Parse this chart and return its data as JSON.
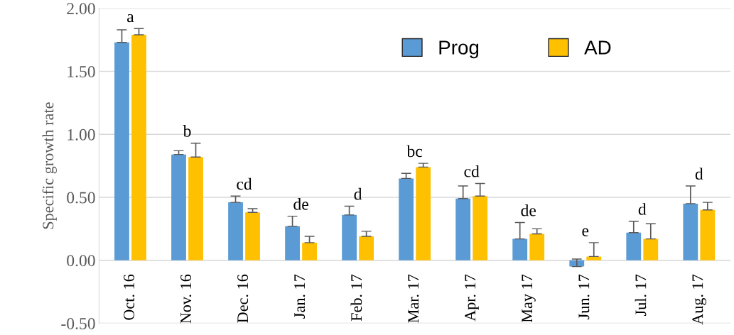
{
  "chart_data": {
    "type": "bar",
    "ylabel": "Specific growth rate",
    "categories": [
      "Oct. 16",
      "Nov. 16",
      "Dec. 16",
      "Jan. 17",
      "Feb. 17",
      "Mar. 17",
      "Apr. 17",
      "May 17",
      "Jun. 17",
      "Jul. 17",
      "Aug. 17"
    ],
    "series": [
      {
        "name": "Prog",
        "color": "#5b9bd5",
        "values": [
          1.73,
          0.84,
          0.46,
          0.27,
          0.36,
          0.65,
          0.49,
          0.17,
          -0.05,
          0.22,
          0.45
        ],
        "errors": [
          [
            1.73,
            1.83
          ],
          [
            0.84,
            0.87
          ],
          [
            0.46,
            0.51
          ],
          [
            0.27,
            0.35
          ],
          [
            0.36,
            0.43
          ],
          [
            0.65,
            0.69
          ],
          [
            0.49,
            0.59
          ],
          [
            0.17,
            0.3
          ],
          [
            -0.05,
            0.01
          ],
          [
            0.22,
            0.31
          ],
          [
            0.45,
            0.59
          ]
        ]
      },
      {
        "name": "AD",
        "color": "#ffc000",
        "values": [
          1.79,
          0.82,
          0.38,
          0.14,
          0.19,
          0.74,
          0.51,
          0.21,
          0.03,
          0.17,
          0.4
        ],
        "errors": [
          [
            1.79,
            1.84
          ],
          [
            0.82,
            0.93
          ],
          [
            0.38,
            0.41
          ],
          [
            0.14,
            0.19
          ],
          [
            0.19,
            0.23
          ],
          [
            0.74,
            0.77
          ],
          [
            0.51,
            0.61
          ],
          [
            0.21,
            0.25
          ],
          [
            0.03,
            0.14
          ],
          [
            0.17,
            0.29
          ],
          [
            0.4,
            0.46
          ]
        ]
      }
    ],
    "annotations": [
      "a",
      "b",
      "cd",
      "de",
      "d",
      "bc",
      "cd",
      "de",
      "e",
      "d",
      "d"
    ],
    "ylim": [
      -0.5,
      2.0
    ],
    "yticks": [
      {
        "value": -0.5,
        "label": "-0.50"
      },
      {
        "value": 0,
        "label": "0.00"
      },
      {
        "value": 0.5,
        "label": "0.50"
      },
      {
        "value": 1.0,
        "label": "1.00"
      },
      {
        "value": 1.5,
        "label": "1.50"
      },
      {
        "value": 2.0,
        "label": "2.00"
      }
    ],
    "grid": "y",
    "legend": "top right"
  }
}
